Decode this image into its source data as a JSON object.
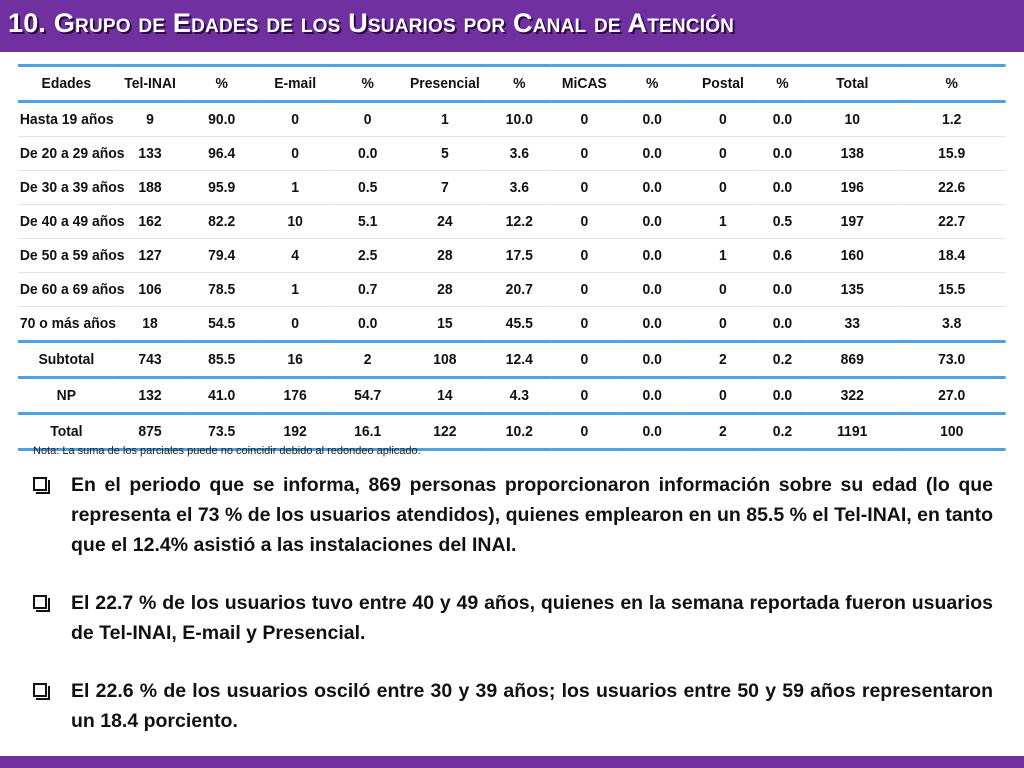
{
  "slide": {
    "title": "10. Grupo de  Edades de los Usuarios por Canal de Atención",
    "accent_color": "#7030a0",
    "rule_color": "#4da3e0"
  },
  "table": {
    "headers": [
      "Edades",
      "Tel-INAI",
      "%",
      "E-mail",
      "%",
      "Presencial",
      "%",
      "MiCAS",
      "%",
      "Postal",
      "%",
      "Total",
      "%"
    ],
    "rows": [
      [
        "Hasta 19 años",
        "9",
        "90.0",
        "0",
        "0",
        "1",
        "10.0",
        "0",
        "0.0",
        "0",
        "0.0",
        "10",
        "1.2"
      ],
      [
        "De 20 a 29 años",
        "133",
        "96.4",
        "0",
        "0.0",
        "5",
        "3.6",
        "0",
        "0.0",
        "0",
        "0.0",
        "138",
        "15.9"
      ],
      [
        "De 30 a 39 años",
        "188",
        "95.9",
        "1",
        "0.5",
        "7",
        "3.6",
        "0",
        "0.0",
        "0",
        "0.0",
        "196",
        "22.6"
      ],
      [
        "De 40 a 49 años",
        "162",
        "82.2",
        "10",
        "5.1",
        "24",
        "12.2",
        "0",
        "0.0",
        "1",
        "0.5",
        "197",
        "22.7"
      ],
      [
        "De 50 a 59 años",
        "127",
        "79.4",
        "4",
        "2.5",
        "28",
        "17.5",
        "0",
        "0.0",
        "1",
        "0.6",
        "160",
        "18.4"
      ],
      [
        "De 60 a 69 años",
        "106",
        "78.5",
        "1",
        "0.7",
        "28",
        "20.7",
        "0",
        "0.0",
        "0",
        "0.0",
        "135",
        "15.5"
      ],
      [
        "70 o más años",
        "18",
        "54.5",
        "0",
        "0.0",
        "15",
        "45.5",
        "0",
        "0.0",
        "0",
        "0.0",
        "33",
        "3.8"
      ]
    ],
    "subtotal": [
      "Subtotal",
      "743",
      "85.5",
      "16",
      "2",
      "108",
      "12.4",
      "0",
      "0.0",
      "2",
      "0.2",
      "869",
      "73.0"
    ],
    "np": [
      "NP",
      "132",
      "41.0",
      "176",
      "54.7",
      "14",
      "4.3",
      "0",
      "0.0",
      "0",
      "0.0",
      "322",
      "27.0"
    ],
    "total": [
      "Total",
      "875",
      "73.5",
      "192",
      "16.1",
      "122",
      "10.2",
      "0",
      "0.0",
      "2",
      "0.2",
      "1191",
      "100"
    ]
  },
  "note": "Nota: La suma de los parciales puede no coincidir debido al redondeo aplicado.",
  "bullets": [
    "En el periodo que se informa, 869 personas proporcionaron información sobre su edad (lo que representa el 73 % de los usuarios atendidos), quienes emplearon en un 85.5 % el Tel-INAI, en tanto que el 12.4% asistió a las instalaciones del INAI.",
    "El 22.7 % de los usuarios tuvo entre 40 y 49 años, quienes en la semana reportada fueron usuarios de Tel-INAI, E-mail y Presencial.",
    "El 22.6 % de los usuarios osciló entre 30 y 39 años; los usuarios entre 50 y 59 años representaron un 18.4 porciento."
  ]
}
